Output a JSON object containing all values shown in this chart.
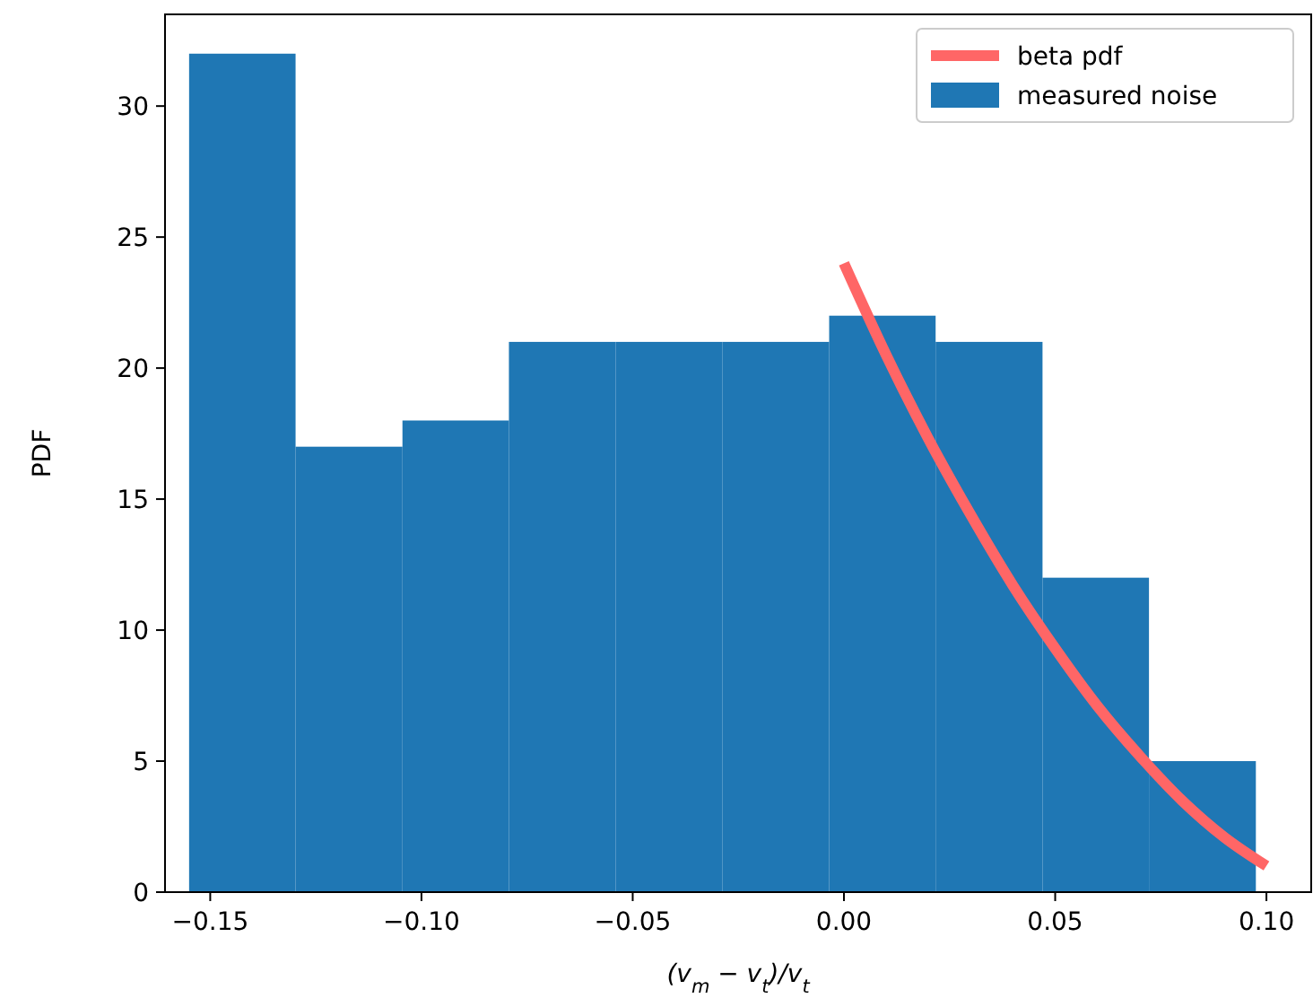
{
  "chart_data": {
    "type": "histogram",
    "xlabel": "(v$_{m}$ − v$_{t}$)/v$_{t}$",
    "ylabel": "PDF",
    "bins": [
      -0.155,
      -0.1298,
      -0.1045,
      -0.0793,
      -0.054,
      -0.0288,
      -0.0035,
      0.0217,
      0.047,
      0.0722,
      0.0975
    ],
    "series": [
      {
        "type": "line",
        "name": "beta pdf",
        "color": "#ff6666",
        "x": [
          0,
          0.01,
          0.02,
          0.03,
          0.04,
          0.05,
          0.06,
          0.07,
          0.08,
          0.09,
          0.1
        ],
        "values": [
          24,
          20.5,
          17.3,
          14.4,
          11.7,
          9.3,
          7.1,
          5.2,
          3.5,
          2.1,
          1
        ]
      },
      {
        "name": "measured noise",
        "color": "#1f77b4",
        "values": [
          32,
          17,
          18,
          21,
          21,
          21,
          22,
          21,
          12,
          5
        ]
      }
    ],
    "xlim": [
      -0.1607,
      0.1106
    ],
    "ylim": [
      0,
      33.5
    ],
    "xticks": [
      {
        "value": -0.15,
        "label": "−0.15"
      },
      {
        "value": -0.1,
        "label": "−0.10"
      },
      {
        "value": -0.05,
        "label": "−0.05"
      },
      {
        "value": 0,
        "label": "0.00"
      },
      {
        "value": 0.05,
        "label": "0.05"
      },
      {
        "value": 0.1,
        "label": "0.10"
      }
    ],
    "yticks": [
      0,
      5,
      10,
      15,
      20,
      25,
      30
    ],
    "legend": "top right",
    "grid": false
  }
}
